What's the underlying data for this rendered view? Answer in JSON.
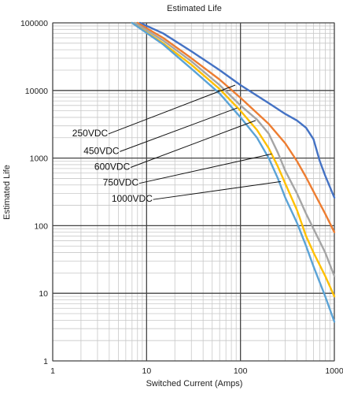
{
  "chart_data": {
    "type": "line",
    "title": "Estimated Life",
    "xlabel": "Switched Current (Amps)",
    "ylabel": "Estimated Life",
    "x_scale": "log",
    "y_scale": "log",
    "xlim": [
      1,
      1000
    ],
    "ylim": [
      1,
      100000
    ],
    "x_ticks": [
      "1",
      "10",
      "100",
      "1000"
    ],
    "y_ticks": [
      "1",
      "10",
      "100",
      "1000",
      "10000",
      "100000"
    ],
    "grid": true,
    "legend": "none",
    "series": [
      {
        "name": "250VDC",
        "color": "#4472c4",
        "points": [
          [
            8.5,
            100000
          ],
          [
            15,
            70000
          ],
          [
            30,
            38000
          ],
          [
            60,
            20000
          ],
          [
            100,
            12000
          ],
          [
            200,
            6500
          ],
          [
            300,
            4500
          ],
          [
            400,
            3600
          ],
          [
            500,
            2800
          ],
          [
            600,
            1900
          ],
          [
            700,
            900
          ],
          [
            800,
            550
          ],
          [
            1000,
            260
          ]
        ]
      },
      {
        "name": "450VDC",
        "color": "#ed7d31",
        "points": [
          [
            8,
            100000
          ],
          [
            15,
            60000
          ],
          [
            30,
            30000
          ],
          [
            60,
            14500
          ],
          [
            100,
            7800
          ],
          [
            200,
            3200
          ],
          [
            300,
            1650
          ],
          [
            400,
            900
          ],
          [
            500,
            520
          ],
          [
            600,
            320
          ],
          [
            800,
            150
          ],
          [
            1000,
            80
          ]
        ]
      },
      {
        "name": "600VDC",
        "color": "#a5a5a5",
        "points": [
          [
            7.5,
            100000
          ],
          [
            15,
            55000
          ],
          [
            30,
            27000
          ],
          [
            60,
            12000
          ],
          [
            100,
            6000
          ],
          [
            150,
            3700
          ],
          [
            200,
            2300
          ],
          [
            250,
            1200
          ],
          [
            300,
            650
          ],
          [
            400,
            300
          ],
          [
            500,
            150
          ],
          [
            600,
            90
          ],
          [
            800,
            40
          ],
          [
            1000,
            18
          ]
        ]
      },
      {
        "name": "750VDC",
        "color": "#ffc000",
        "points": [
          [
            7,
            100000
          ],
          [
            15,
            50000
          ],
          [
            30,
            24000
          ],
          [
            60,
            10500
          ],
          [
            100,
            5000
          ],
          [
            150,
            2600
          ],
          [
            200,
            1400
          ],
          [
            250,
            750
          ],
          [
            300,
            420
          ],
          [
            400,
            170
          ],
          [
            500,
            70
          ],
          [
            600,
            40
          ],
          [
            800,
            18
          ],
          [
            1000,
            9
          ]
        ]
      },
      {
        "name": "1000VDC",
        "color": "#5ba3d6",
        "points": [
          [
            7,
            100000
          ],
          [
            15,
            48000
          ],
          [
            30,
            21000
          ],
          [
            60,
            9000
          ],
          [
            100,
            4000
          ],
          [
            150,
            2000
          ],
          [
            200,
            1000
          ],
          [
            250,
            500
          ],
          [
            300,
            260
          ],
          [
            400,
            110
          ],
          [
            500,
            50
          ],
          [
            600,
            25
          ],
          [
            800,
            9
          ],
          [
            1000,
            3.8
          ]
        ]
      }
    ],
    "annotations": [
      {
        "text": "250VDC",
        "target": [
          88,
          12000
        ],
        "label_at": [
          2.5,
          2100
        ]
      },
      {
        "text": "450VDC",
        "target": [
          92,
          5500
        ],
        "label_at": [
          3.3,
          1150
        ]
      },
      {
        "text": "600VDC",
        "target": [
          145,
          3600
        ],
        "label_at": [
          4.3,
          670
        ]
      },
      {
        "text": "750VDC",
        "target": [
          215,
          1150
        ],
        "label_at": [
          5.3,
          390
        ]
      },
      {
        "text": "1000VDC",
        "target": [
          270,
          450
        ],
        "label_at": [
          7.0,
          225
        ]
      }
    ]
  }
}
